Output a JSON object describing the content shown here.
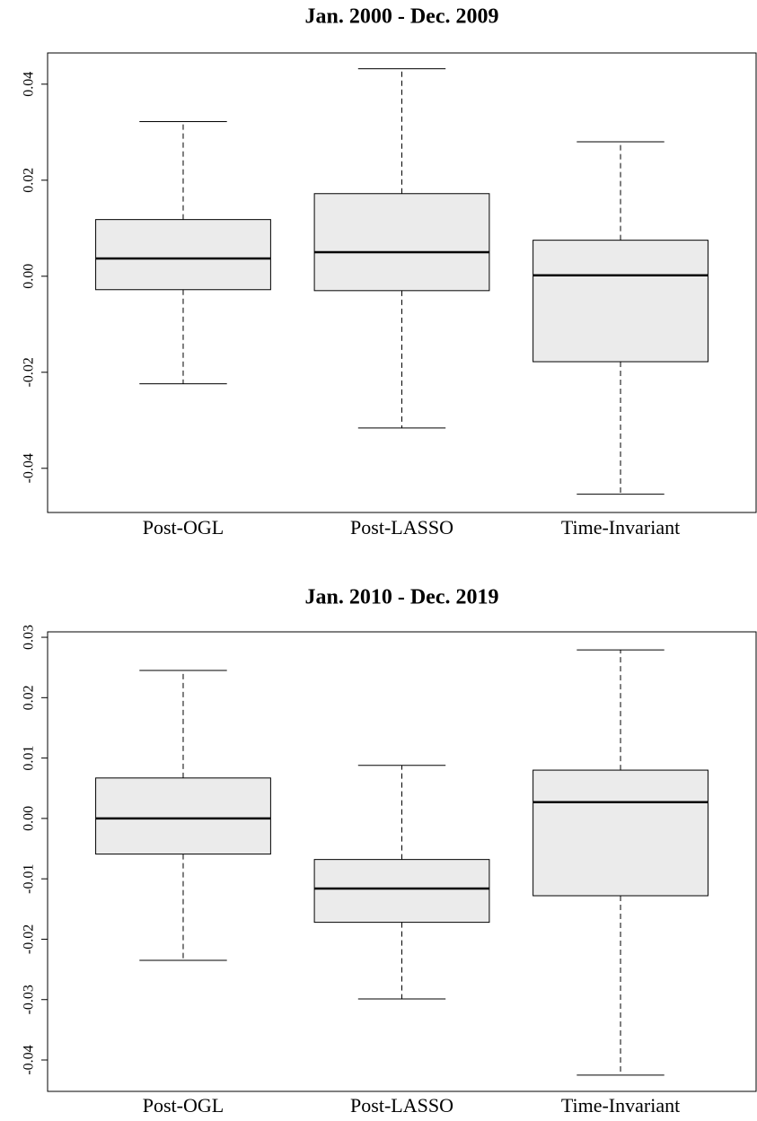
{
  "chart_data": [
    {
      "type": "box",
      "title": "Jan. 2000 - Dec. 2009",
      "categories": [
        "Post-OGL",
        "Post-LASSO",
        "Time-Invariant"
      ],
      "color": "#ebebeb",
      "boxes": [
        {
          "whislo": -0.0224,
          "q1": -0.0028,
          "med": 0.0037,
          "q3": 0.0118,
          "whishi": 0.0322
        },
        {
          "whislo": -0.0316,
          "q1": -0.003,
          "med": 0.005,
          "q3": 0.0172,
          "whishi": 0.0432
        },
        {
          "whislo": -0.0454,
          "q1": -0.0178,
          "med": 0.0002,
          "q3": 0.0075,
          "whishi": 0.028
        }
      ],
      "ylim": [
        -0.0492,
        0.0465
      ],
      "yticks": [
        -0.04,
        -0.02,
        {
          "value": 0,
          "label": "0.00"
        },
        0.02,
        0.04
      ]
    },
    {
      "type": "box",
      "title": "Jan. 2010 - Dec. 2019",
      "categories": [
        "Post-OGL",
        "Post-LASSO",
        "Time-Invariant"
      ],
      "color": "#ebebeb",
      "boxes": [
        {
          "whislo": -0.0235,
          "q1": -0.0059,
          "med": 0.0,
          "q3": 0.0067,
          "whishi": 0.0245
        },
        {
          "whislo": -0.0299,
          "q1": -0.0172,
          "med": -0.0116,
          "q3": -0.0068,
          "whishi": 0.0088
        },
        {
          "whislo": -0.0425,
          "q1": -0.0128,
          "med": 0.0027,
          "q3": 0.008,
          "whishi": 0.0279
        }
      ],
      "ylim": [
        -0.0452,
        0.0309
      ],
      "yticks": [
        -0.04,
        -0.03,
        -0.02,
        -0.01,
        {
          "value": 0,
          "label": "0.00"
        },
        0.01,
        0.02,
        0.03
      ]
    }
  ]
}
